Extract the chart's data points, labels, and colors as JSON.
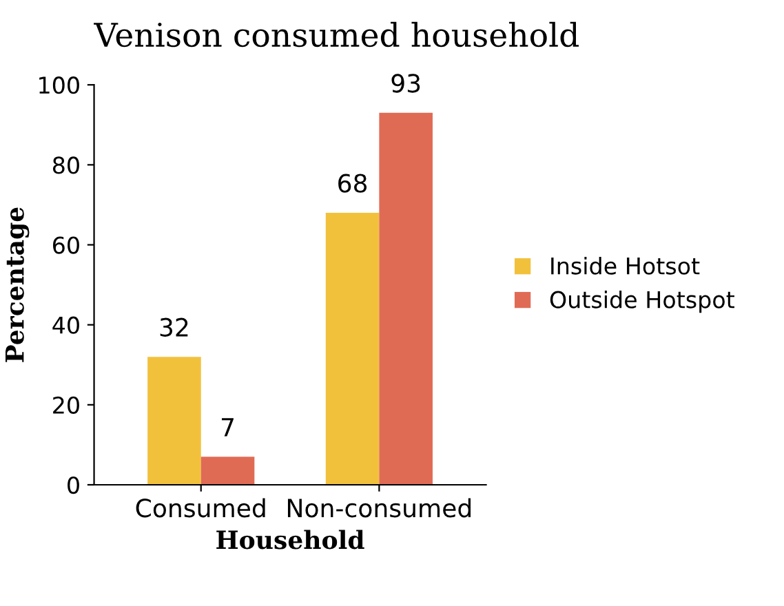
{
  "chart_data": {
    "type": "bar",
    "title": "Venison consumed household",
    "xlabel": "Household",
    "ylabel": "Percentage",
    "categories": [
      "Consumed",
      "Non-consumed"
    ],
    "series": [
      {
        "name": "Inside Hotsot",
        "color": "#f2c13c",
        "values": [
          32,
          68
        ]
      },
      {
        "name": "Outside Hotspot",
        "color": "#e06b55",
        "values": [
          7,
          93
        ]
      }
    ],
    "ylim": [
      0,
      100
    ],
    "yticks": [
      0,
      20,
      40,
      60,
      80,
      100
    ],
    "grid": false,
    "legend": "right",
    "data_labels": true
  }
}
